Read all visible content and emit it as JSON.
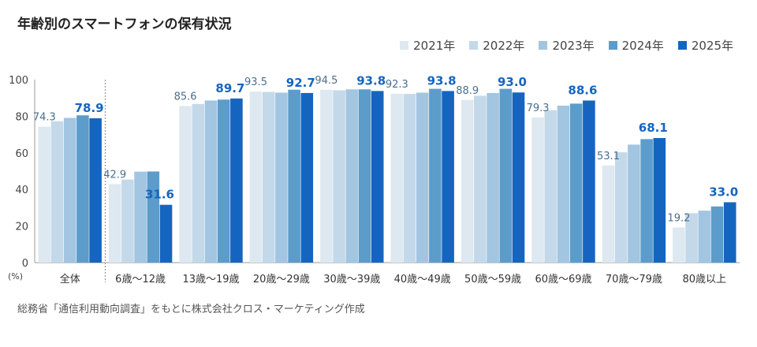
{
  "chart_data": {
    "type": "bar",
    "title": "年齢別のスマートフォンの保有状況",
    "ylabel": "(%)",
    "ylim": [
      0,
      100
    ],
    "yticks": [
      "0",
      "20",
      "40",
      "60",
      "80",
      "100"
    ],
    "categories": [
      "全体",
      "6歳〜12歳",
      "13歳〜19歳",
      "20歳〜29歳",
      "30歳〜39歳",
      "40歳〜49歳",
      "50歳〜59歳",
      "60歳〜69歳",
      "70歳〜79歳",
      "80歳以上"
    ],
    "series": [
      {
        "name": "2021年",
        "color": "#dde8f1",
        "values": [
          74.3,
          42.9,
          85.6,
          93.5,
          94.5,
          92.3,
          88.9,
          79.3,
          53.1,
          19.2
        ]
      },
      {
        "name": "2022年",
        "color": "#c3d9ea",
        "values": [
          77.3,
          45.4,
          86.7,
          93.3,
          94.2,
          92.2,
          91.2,
          83.3,
          60.3,
          27.0
        ]
      },
      {
        "name": "2023年",
        "color": "#a2c5e1",
        "values": [
          79.1,
          49.7,
          88.6,
          92.9,
          94.7,
          92.9,
          92.7,
          85.8,
          64.5,
          28.4
        ]
      },
      {
        "name": "2024年",
        "color": "#5c9ccb",
        "values": [
          80.5,
          49.8,
          89.1,
          94.5,
          94.7,
          95.0,
          95.0,
          86.9,
          67.5,
          30.7
        ]
      },
      {
        "name": "2025年",
        "color": "#1565c0",
        "values": [
          78.9,
          31.6,
          89.7,
          92.7,
          93.8,
          93.8,
          93.0,
          88.6,
          68.1,
          33.0
        ]
      }
    ],
    "data_labels": {
      "first_year": [
        "74.3",
        "42.9",
        "85.6",
        "93.5",
        "94.5",
        "92.3",
        "88.9",
        "79.3",
        "53.1",
        "19.2"
      ],
      "last_year": [
        "78.9",
        "31.6",
        "89.7",
        "92.7",
        "93.8",
        "93.8",
        "93.0",
        "88.6",
        "68.1",
        "33.0"
      ]
    },
    "legend_position": "top-right",
    "grid": false
  },
  "source_note": "総務省「通信利用動向調査」をもとに株式会社クロス・マーケティング作成",
  "colors": {
    "label_2021": "#4a6f8f",
    "label_2025": "#1565c0",
    "axis": "#999999"
  }
}
